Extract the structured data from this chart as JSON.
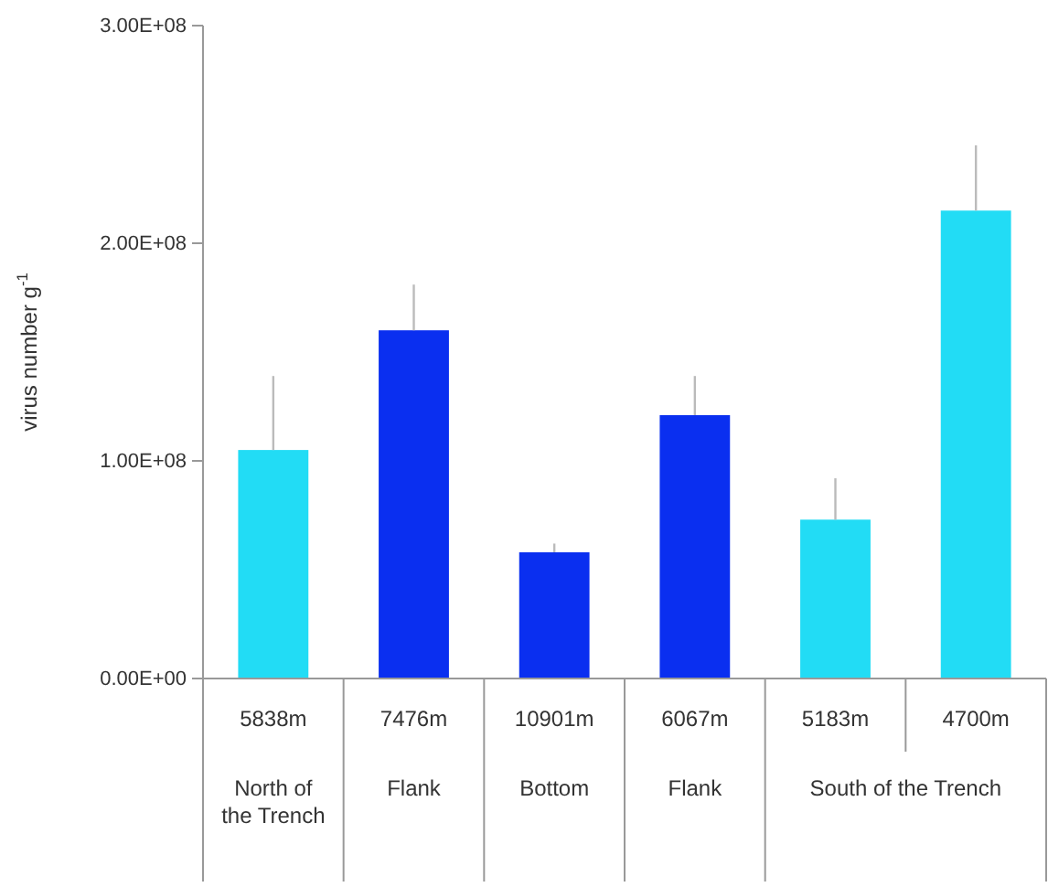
{
  "chart_data": {
    "type": "bar",
    "ylabel": "virus number g$^{-1}$",
    "categories": [
      "5838m",
      "7476m",
      "10901m",
      "6067m",
      "5183m",
      "4700m"
    ],
    "values": [
      105000000,
      160000000,
      58000000,
      121000000,
      73000000,
      215000000
    ],
    "colors": [
      "#22dcf5",
      "#0a2ff0",
      "#0a2ff0",
      "#0a2ff0",
      "#22dcf5",
      "#22dcf5"
    ],
    "errors": [
      34000000,
      21000000,
      4000000,
      18000000,
      19000000,
      30000000
    ],
    "ylim": [
      0,
      300000000
    ],
    "yticks": [
      {
        "value": 0,
        "label": "0.00E+00"
      },
      {
        "value": 100000000,
        "label": "1.00E+08"
      },
      {
        "value": 200000000,
        "label": "2.00E+08"
      },
      {
        "value": 300000000,
        "label": "3.00E+08"
      }
    ],
    "grid": false,
    "annotations": [
      "North of the Trench",
      "Flank",
      "Bottom",
      "Flank",
      "South of the Trench"
    ]
  }
}
